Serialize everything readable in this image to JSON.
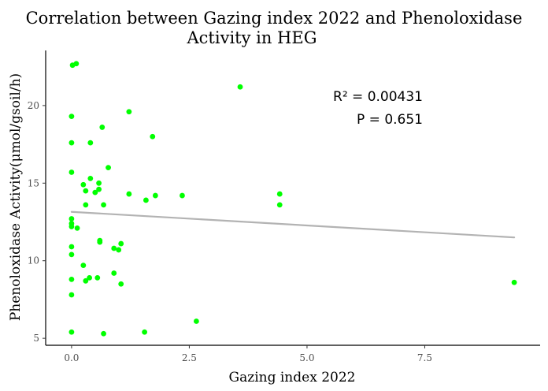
{
  "chart_data": {
    "type": "scatter",
    "title_lines": [
      "Correlation between Gazing index 2022 and Phenoloxidase",
      "Activity in HEG"
    ],
    "xlabel": "Gazing index 2022",
    "ylabel": "Phenoloxidase Activity(μmol/gsoil/h)",
    "xlim": [
      -0.55,
      9.95
    ],
    "ylim": [
      4.55,
      23.55
    ],
    "x_ticks": [
      0.0,
      2.5,
      5.0,
      7.5
    ],
    "x_tick_labels": [
      "0.0",
      "2.5",
      "5.0",
      "7.5"
    ],
    "y_ticks": [
      5,
      10,
      15,
      20
    ],
    "y_tick_labels": [
      "5",
      "10",
      "15",
      "20"
    ],
    "grid": false,
    "point_color": "#00ff00",
    "trend_color": "#b3b3b3",
    "annotations": [
      "R² = 0.00431",
      "P = 0.651"
    ],
    "trendline": {
      "x": [
        0.0,
        9.4
      ],
      "y": [
        13.15,
        11.5
      ]
    },
    "points": [
      {
        "x": 0.02,
        "y": 22.6
      },
      {
        "x": 0.1,
        "y": 22.7
      },
      {
        "x": 0.0,
        "y": 19.3
      },
      {
        "x": 0.0,
        "y": 17.6
      },
      {
        "x": 0.0,
        "y": 15.7
      },
      {
        "x": 0.0,
        "y": 12.7
      },
      {
        "x": 0.0,
        "y": 12.4
      },
      {
        "x": 0.0,
        "y": 12.2
      },
      {
        "x": 0.12,
        "y": 12.1
      },
      {
        "x": 0.0,
        "y": 10.9
      },
      {
        "x": 0.0,
        "y": 10.4
      },
      {
        "x": 0.0,
        "y": 8.8
      },
      {
        "x": 0.0,
        "y": 7.8
      },
      {
        "x": 0.0,
        "y": 5.4
      },
      {
        "x": 0.25,
        "y": 9.7
      },
      {
        "x": 0.3,
        "y": 8.7
      },
      {
        "x": 0.38,
        "y": 8.9
      },
      {
        "x": 0.55,
        "y": 8.9
      },
      {
        "x": 0.25,
        "y": 14.9
      },
      {
        "x": 0.3,
        "y": 14.5
      },
      {
        "x": 0.3,
        "y": 13.6
      },
      {
        "x": 0.4,
        "y": 15.3
      },
      {
        "x": 0.5,
        "y": 14.4
      },
      {
        "x": 0.58,
        "y": 14.6
      },
      {
        "x": 0.58,
        "y": 15.0
      },
      {
        "x": 0.4,
        "y": 17.6
      },
      {
        "x": 0.65,
        "y": 18.6
      },
      {
        "x": 0.6,
        "y": 11.3
      },
      {
        "x": 0.6,
        "y": 11.2
      },
      {
        "x": 0.68,
        "y": 13.6
      },
      {
        "x": 0.78,
        "y": 16.0
      },
      {
        "x": 0.68,
        "y": 5.3
      },
      {
        "x": 0.9,
        "y": 10.8
      },
      {
        "x": 1.0,
        "y": 10.7
      },
      {
        "x": 1.05,
        "y": 11.1
      },
      {
        "x": 0.9,
        "y": 9.2
      },
      {
        "x": 1.05,
        "y": 8.5
      },
      {
        "x": 1.22,
        "y": 19.6
      },
      {
        "x": 1.22,
        "y": 14.3
      },
      {
        "x": 1.58,
        "y": 13.9
      },
      {
        "x": 1.55,
        "y": 5.4
      },
      {
        "x": 1.72,
        "y": 18.0
      },
      {
        "x": 1.78,
        "y": 14.2
      },
      {
        "x": 2.35,
        "y": 14.2
      },
      {
        "x": 2.65,
        "y": 6.1
      },
      {
        "x": 3.58,
        "y": 21.2
      },
      {
        "x": 4.42,
        "y": 14.3
      },
      {
        "x": 4.42,
        "y": 13.6
      },
      {
        "x": 9.4,
        "y": 8.6
      }
    ]
  }
}
